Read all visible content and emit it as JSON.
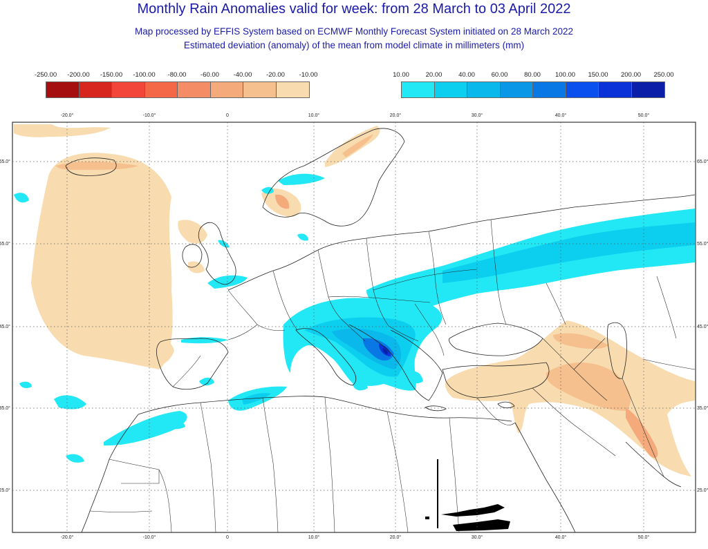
{
  "title": "Monthly Rain Anomalies valid for week: from 28 March to 03 April 2022",
  "subtitle_1": "Map processed by EFFIS System based on ECMWF Monthly Forecast System initiated on 28 March 2022",
  "subtitle_2": "Estimated deviation (anomaly) of the mean from model climate in millimeters (mm)",
  "legend_negative": {
    "labels": [
      "-250.00",
      "-200.00",
      "-150.00",
      "-100.00",
      "-80.00",
      "-60.00",
      "-40.00",
      "-20.00",
      "-10.00"
    ],
    "colors": [
      "#a50f0f",
      "#d7261e",
      "#f2463a",
      "#f46848",
      "#f48d66",
      "#f5aa7c",
      "#f5c08d",
      "#f8dcb0"
    ]
  },
  "legend_positive": {
    "labels": [
      "10.00",
      "20.00",
      "40.00",
      "60.00",
      "80.00",
      "100.00",
      "150.00",
      "200.00",
      "250.00"
    ],
    "colors": [
      "#22e8f6",
      "#0ccff0",
      "#0ab8ec",
      "#0a98e6",
      "#0a78e4",
      "#0a50ee",
      "#0a32d8",
      "#0a1ea8"
    ]
  },
  "axis": {
    "lon_labels": [
      "-20.0°",
      "-10.0°",
      "0",
      "10.0°",
      "20.0°",
      "30.0°",
      "40.0°",
      "50.0°"
    ],
    "lat_labels": [
      "65.0°",
      "55.0°",
      "45.0°",
      "35.0°",
      "25.0°"
    ]
  },
  "colors": {
    "dry_fill": "#f8dcb0",
    "dry_fill_2": "#f5c08d",
    "dry_fill_3": "#f5aa7c",
    "wet_fill": "#22e8f6",
    "wet_fill_2": "#0ccff0",
    "wet_fill_3": "#0ab8ec",
    "wet_fill_4": "#0a78e4",
    "wet_fill_5": "#0a32d8",
    "wet_fill_6": "#0a1ea8",
    "border": "#222222",
    "grid": "#555555"
  }
}
